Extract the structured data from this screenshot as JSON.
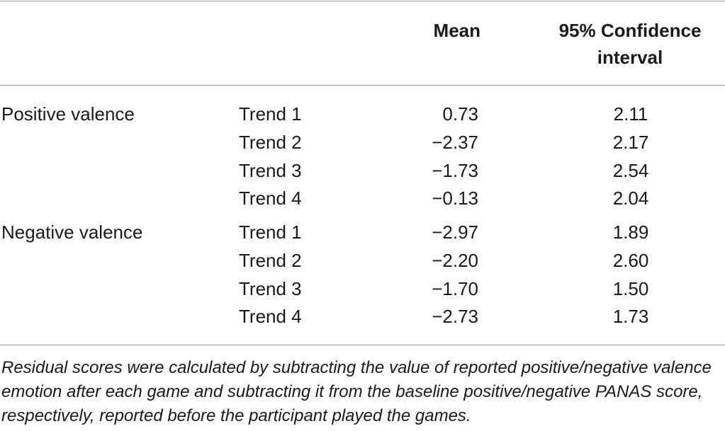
{
  "headers": {
    "mean": "Mean",
    "ci_line1": "95% Confidence",
    "ci_line2": "interval"
  },
  "groups": [
    {
      "label": "Positive valence",
      "rows": [
        {
          "trend": "Trend 1",
          "mean": "0.73",
          "ci": "2.11"
        },
        {
          "trend": "Trend 2",
          "mean": "−2.37",
          "ci": "2.17"
        },
        {
          "trend": "Trend 3",
          "mean": "−1.73",
          "ci": "2.54"
        },
        {
          "trend": "Trend 4",
          "mean": "−0.13",
          "ci": "2.04"
        }
      ]
    },
    {
      "label": "Negative valence",
      "rows": [
        {
          "trend": "Trend 1",
          "mean": "−2.97",
          "ci": "1.89"
        },
        {
          "trend": "Trend 2",
          "mean": "−2.20",
          "ci": "2.60"
        },
        {
          "trend": "Trend 3",
          "mean": "−1.70",
          "ci": "1.50"
        },
        {
          "trend": "Trend 4",
          "mean": "−2.73",
          "ci": "1.73"
        }
      ]
    }
  ],
  "footnote": "Residual scores were calculated by subtracting the value of reported positive/negative valence emotion after each game and subtracting it from the baseline positive/negative PANAS score, respectively, reported before the participant played the games."
}
